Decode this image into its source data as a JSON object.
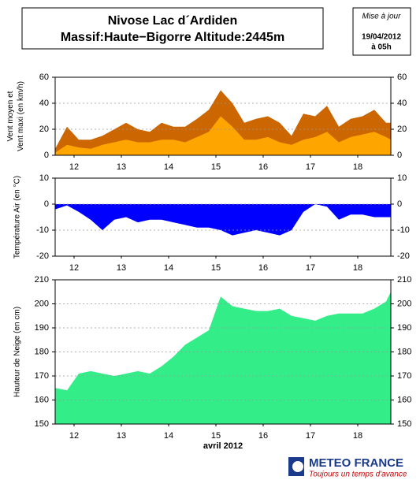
{
  "header": {
    "title": "Nivose Lac d´Ardiden",
    "subtitle": "Massif:Haute−Bigorre Altitude:2445m",
    "update_label": "Mise à jour",
    "update_date": "19/04/2012",
    "update_time": "à 05h"
  },
  "logo": {
    "name": "METEO FRANCE",
    "slogan": "Toujours un temps d'avance"
  },
  "chart_data": [
    {
      "type": "area",
      "ylabel": [
        "Vent moyen et",
        "Vent maxi (en km/h)"
      ],
      "x": [
        12.1,
        12.35,
        12.6,
        12.85,
        13.1,
        13.35,
        13.6,
        13.85,
        14.1,
        14.35,
        14.6,
        14.85,
        15.1,
        15.35,
        15.6,
        15.85,
        16.1,
        16.35,
        16.6,
        16.85,
        17.1,
        17.35,
        17.6,
        17.85,
        18.1,
        18.35,
        18.6,
        18.85,
        19.1,
        19.2
      ],
      "xlim": [
        12.1,
        19.2
      ],
      "xticks": [
        {
          "value": 12.5,
          "label": "12"
        },
        {
          "value": 13.5,
          "label": "13"
        },
        {
          "value": 14.5,
          "label": "14"
        },
        {
          "value": 15.5,
          "label": "15"
        },
        {
          "value": 16.5,
          "label": "16"
        },
        {
          "value": 17.5,
          "label": "17"
        },
        {
          "value": 18.5,
          "label": "18"
        }
      ],
      "ylim": [
        0,
        60
      ],
      "yticks": [
        0,
        20,
        40,
        60
      ],
      "grid": true,
      "series": [
        {
          "color": "#cc6600",
          "values": [
            5,
            22,
            12,
            12,
            15,
            20,
            25,
            20,
            18,
            25,
            22,
            22,
            28,
            35,
            50,
            40,
            25,
            28,
            30,
            25,
            15,
            32,
            30,
            38,
            22,
            28,
            30,
            35,
            25,
            25
          ]
        },
        {
          "color": "#ffa500",
          "values": [
            2,
            8,
            6,
            5,
            8,
            10,
            12,
            10,
            10,
            12,
            12,
            10,
            14,
            18,
            30,
            22,
            12,
            12,
            14,
            10,
            8,
            12,
            14,
            18,
            10,
            14,
            16,
            18,
            14,
            12
          ]
        }
      ]
    },
    {
      "type": "area",
      "ylabel": [
        "Température Air (en °C)"
      ],
      "x": [
        12.1,
        12.35,
        12.6,
        12.85,
        13.1,
        13.35,
        13.6,
        13.85,
        14.1,
        14.35,
        14.6,
        14.85,
        15.1,
        15.35,
        15.6,
        15.85,
        16.1,
        16.35,
        16.6,
        16.85,
        17.1,
        17.35,
        17.6,
        17.85,
        18.1,
        18.35,
        18.6,
        18.85,
        19.1,
        19.2
      ],
      "xlim": [
        12.1,
        19.2
      ],
      "xticks": [
        {
          "value": 12.5,
          "label": "12"
        },
        {
          "value": 13.5,
          "label": "13"
        },
        {
          "value": 14.5,
          "label": "14"
        },
        {
          "value": 15.5,
          "label": "15"
        },
        {
          "value": 16.5,
          "label": "16"
        },
        {
          "value": 17.5,
          "label": "17"
        },
        {
          "value": 18.5,
          "label": "18"
        }
      ],
      "ylim": [
        -20,
        10
      ],
      "yticks": [
        -20,
        -10,
        0,
        10
      ],
      "grid": true,
      "series": [
        {
          "color": "#0000ff",
          "values": [
            -2,
            -0.5,
            -3,
            -6,
            -10,
            -6,
            -5,
            -7,
            -6,
            -6,
            -7,
            -8,
            -9,
            -9,
            -10,
            -12,
            -11,
            -10,
            -11,
            -12,
            -10,
            -3,
            0,
            -1,
            -6,
            -4,
            -4,
            -5,
            -5,
            -5
          ]
        }
      ]
    },
    {
      "type": "area",
      "ylabel": [
        "Hauteur de Neige (en cm)"
      ],
      "xlabel": "avril 2012",
      "x": [
        12.1,
        12.35,
        12.6,
        12.85,
        13.1,
        13.35,
        13.6,
        13.85,
        14.1,
        14.35,
        14.6,
        14.85,
        15.1,
        15.35,
        15.6,
        15.85,
        16.1,
        16.35,
        16.6,
        16.85,
        17.1,
        17.35,
        17.6,
        17.85,
        18.1,
        18.35,
        18.6,
        18.85,
        19.1,
        19.2
      ],
      "xlim": [
        12.1,
        19.2
      ],
      "xticks": [
        {
          "value": 12.5,
          "label": "12"
        },
        {
          "value": 13.5,
          "label": "13"
        },
        {
          "value": 14.5,
          "label": "14"
        },
        {
          "value": 15.5,
          "label": "15"
        },
        {
          "value": 16.5,
          "label": "16"
        },
        {
          "value": 17.5,
          "label": "17"
        },
        {
          "value": 18.5,
          "label": "18"
        }
      ],
      "ylim": [
        150,
        210
      ],
      "yticks": [
        150,
        160,
        170,
        180,
        190,
        200,
        210
      ],
      "grid": true,
      "series": [
        {
          "color": "#33ee88",
          "values": [
            165,
            164,
            171,
            172,
            171,
            170,
            171,
            172,
            171,
            174,
            178,
            183,
            186,
            189,
            203,
            199,
            198,
            197,
            197,
            198,
            195,
            194,
            193,
            195,
            196,
            196,
            196,
            198,
            201,
            205
          ]
        }
      ]
    }
  ]
}
